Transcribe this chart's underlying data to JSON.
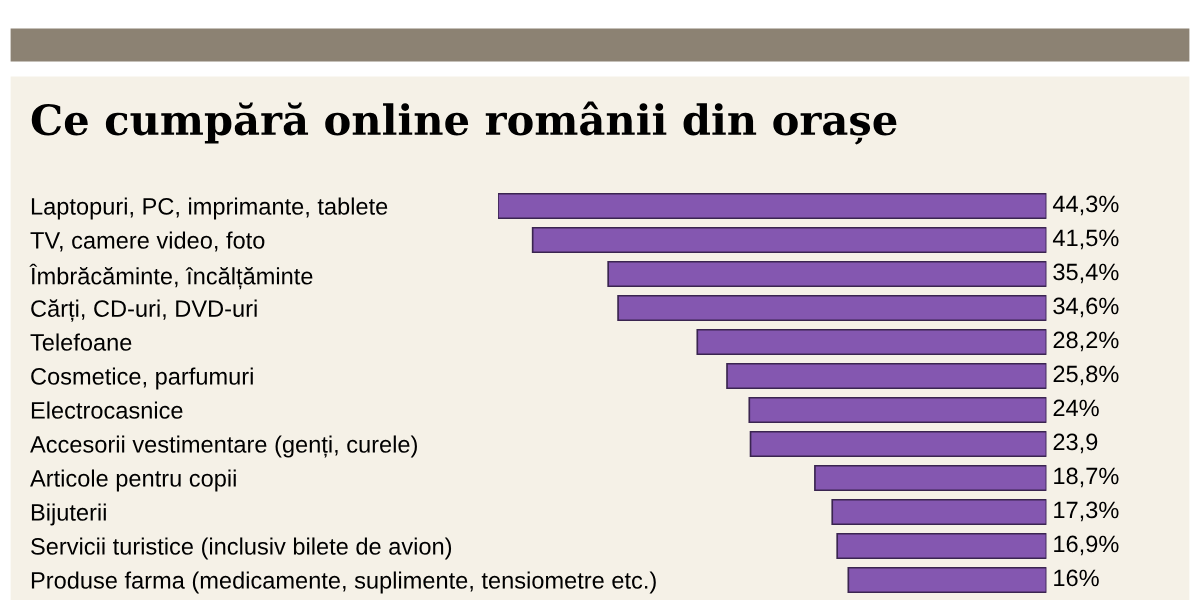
{
  "chart_data": {
    "type": "bar",
    "orientation": "horizontal",
    "title": "Ce cumpără online românii din orașe",
    "categories": [
      "Laptopuri, PC, imprimante, tablete",
      "TV, camere video, foto",
      "Îmbrăcăminte, încălțăminte",
      "Cărți, CD-uri, DVD-uri",
      "Telefoane",
      "Cosmetice, parfumuri",
      "Electrocasnice",
      "Accesorii vestimentare (genți, curele)",
      "Articole pentru copii",
      "Bijuterii",
      "Servicii turistice (inclusiv bilete de avion)",
      "Produse farma (medicamente, suplimente, tensiometre etc.)"
    ],
    "values": [
      44.3,
      41.5,
      35.4,
      34.6,
      28.2,
      25.8,
      24,
      23.9,
      18.7,
      17.3,
      16.9,
      16
    ],
    "value_labels": [
      "44,3%",
      "41,5%",
      "35,4%",
      "34,6%",
      "28,2%",
      "25,8%",
      "24%",
      "23,9",
      "18,7%",
      "17,3%",
      "16,9%",
      "16%"
    ],
    "color": "#8457b0",
    "tick_labels": "y",
    "grid": false,
    "legend": false
  }
}
